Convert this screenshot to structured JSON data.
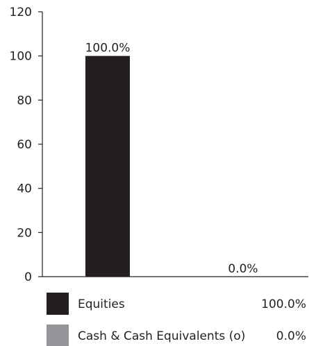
{
  "chart_data": {
    "type": "bar",
    "categories": [
      "Equities",
      "Cash & Cash Equivalents (o)"
    ],
    "values": [
      100.0,
      0.0
    ],
    "data_labels": [
      "100.0%",
      "0.0%"
    ],
    "ylim": [
      0,
      120
    ],
    "yticks": [
      0,
      20,
      40,
      60,
      80,
      100,
      120
    ],
    "ytick_labels": [
      "0",
      "20",
      "40",
      "60",
      "80",
      "100",
      "120"
    ],
    "title": "",
    "xlabel": "",
    "ylabel": "",
    "grid": false,
    "legend_position": "bottom",
    "colors": [
      "#231f20",
      "#939598"
    ],
    "legend": [
      {
        "label": "Equities",
        "value": "100.0%",
        "color": "#231f20"
      },
      {
        "label": "Cash & Cash Equivalents (o)",
        "value": "0.0%",
        "color": "#939598"
      }
    ]
  }
}
